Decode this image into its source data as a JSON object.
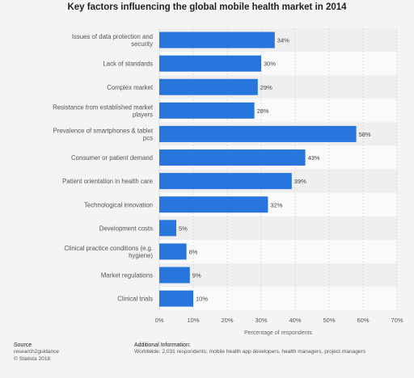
{
  "title": "Key factors influencing the global mobile health market in 2014",
  "chart_data": {
    "type": "bar",
    "orientation": "horizontal",
    "title": "Key factors influencing the global mobile health market in 2014",
    "xlabel": "Percentage of respondents",
    "ylabel": "",
    "xlim": [
      0,
      70
    ],
    "ticks": [
      "0%",
      "10%",
      "20%",
      "30%",
      "40%",
      "50%",
      "60%",
      "70%"
    ],
    "grid": true,
    "categories": [
      "Issues of data protection and security",
      "Lack of standards",
      "Complex market",
      "Resistance from established market players",
      "Prevalence of smartphones & tablet pcs",
      "Consumer or patient demand",
      "Patient orientation in health care",
      "Technological innovation",
      "Development costs",
      "Clinical practice conditions (e.g. hygiene)",
      "Market regulations",
      "Clinical trials"
    ],
    "values": [
      34,
      30,
      29,
      28,
      58,
      43,
      39,
      32,
      5,
      8,
      9,
      10
    ],
    "value_labels": [
      "34%",
      "30%",
      "29%",
      "28%",
      "58%",
      "43%",
      "39%",
      "32%",
      "5%",
      "8%",
      "9%",
      "10%"
    ],
    "bar_color": "#2876dd"
  },
  "footer": {
    "source_heading": "Source",
    "source_lines": [
      "research2guidance",
      "© Statista 2018"
    ],
    "info_heading": "Additional Information:",
    "info_text": "Worldwide; 2,031 respondents; mobile health app developers, health managers, project managers"
  }
}
